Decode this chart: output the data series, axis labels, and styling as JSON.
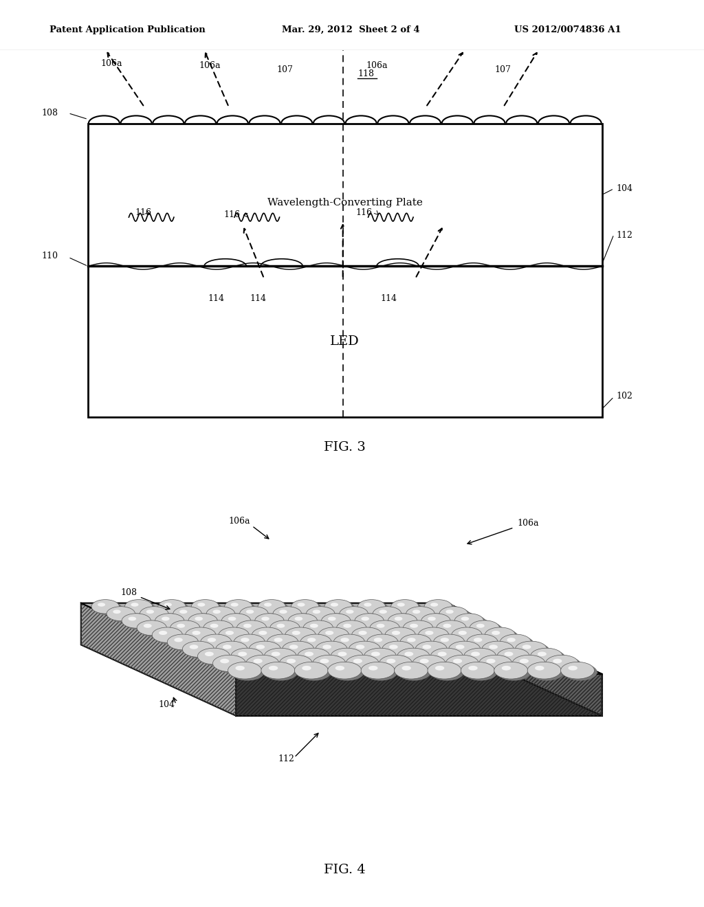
{
  "bg_color": "#ffffff",
  "header_text": "Patent Application Publication",
  "header_date": "Mar. 29, 2012  Sheet 2 of 4",
  "header_patent": "US 2012/0074836 A1",
  "fig3_label": "FIG. 3",
  "fig4_label": "FIG. 4",
  "wcp_label": "Wavelength-Converting Plate",
  "led_label": "LED"
}
